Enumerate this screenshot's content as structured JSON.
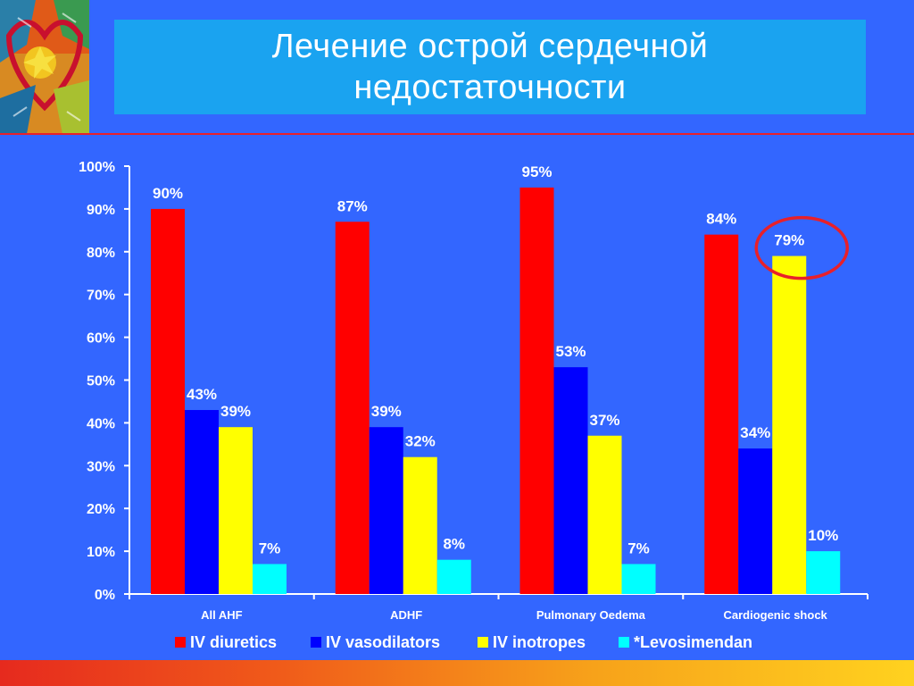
{
  "slide": {
    "title": "Лечение острой сердечной\nнедостаточности"
  },
  "chart_data": {
    "type": "bar",
    "categories": [
      "All AHF",
      "ADHF",
      "Pulmonary Oedema",
      "Cardiogenic shock"
    ],
    "series": [
      {
        "name": "IV diuretics",
        "color": "#ff0000",
        "values": [
          90,
          87,
          95,
          84
        ],
        "labels": [
          "90%",
          "87%",
          "95%",
          "84%"
        ]
      },
      {
        "name": "IV vasodilators",
        "color": "#0000ff",
        "values": [
          43,
          39,
          53,
          34
        ],
        "labels": [
          "43%",
          "39%",
          "53%",
          "34%"
        ]
      },
      {
        "name": "IV inotropes",
        "color": "#ffff00",
        "values": [
          39,
          32,
          37,
          79
        ],
        "labels": [
          "39%",
          "32%",
          "37%",
          "79%"
        ]
      },
      {
        "name": "*Levosimendan",
        "color": "#00ffff",
        "values": [
          7,
          8,
          7,
          10
        ],
        "labels": [
          "7%",
          "8%",
          "7%",
          "10%"
        ]
      }
    ],
    "ylim": [
      0,
      100
    ],
    "yticks": [
      "0%",
      "10%",
      "20%",
      "30%",
      "40%",
      "50%",
      "60%",
      "70%",
      "80%",
      "90%",
      "100%"
    ],
    "legend": "bottom",
    "grid": false,
    "highlight": {
      "series": 2,
      "category": 3,
      "color": "#e8202a"
    }
  }
}
